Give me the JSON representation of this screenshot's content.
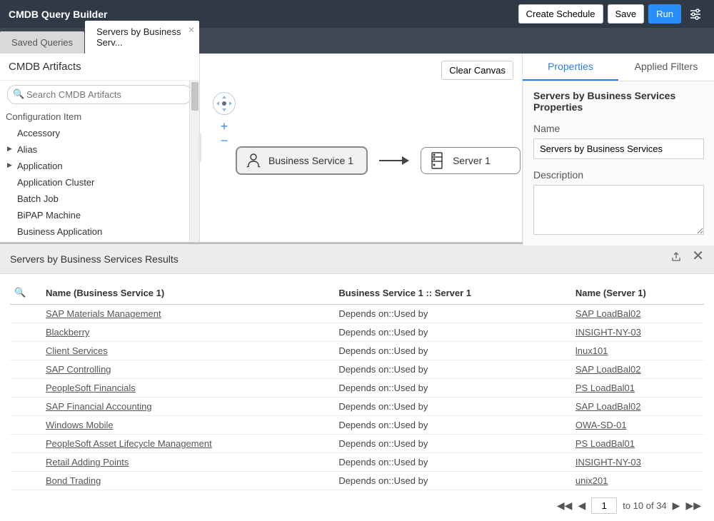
{
  "header": {
    "title": "CMDB Query Builder",
    "create_schedule": "Create Schedule",
    "save": "Save",
    "run": "Run"
  },
  "tabs": {
    "saved_queries": "Saved Queries",
    "active_tab": "Servers by Business Serv..."
  },
  "sidebar": {
    "title": "CMDB Artifacts",
    "search_placeholder": "Search CMDB Artifacts",
    "section": "Configuration Item",
    "items": [
      {
        "label": "Accessory",
        "children": false
      },
      {
        "label": "Alias",
        "children": true
      },
      {
        "label": "Application",
        "children": true
      },
      {
        "label": "Application Cluster",
        "children": false
      },
      {
        "label": "Batch Job",
        "children": false
      },
      {
        "label": "BiPAP Machine",
        "children": false
      },
      {
        "label": "Business Application",
        "children": false
      }
    ]
  },
  "canvas": {
    "clear": "Clear Canvas",
    "node1": "Business Service 1",
    "node2": "Server 1"
  },
  "right_panel": {
    "tab_properties": "Properties",
    "tab_filters": "Applied Filters",
    "heading": "Servers by Business Services Properties",
    "name_label": "Name",
    "name_value": "Servers by Business Services",
    "desc_label": "Description"
  },
  "results": {
    "title": "Servers by Business Services Results",
    "columns": {
      "c1": "Name (Business Service 1)",
      "c2": "Business Service 1 :: Server 1",
      "c3": "Name (Server 1)"
    },
    "rows": [
      {
        "c1": "SAP Materials Management",
        "c2": "Depends on::Used by",
        "c3": "SAP LoadBal02"
      },
      {
        "c1": "Blackberry",
        "c2": "Depends on::Used by",
        "c3": "INSIGHT-NY-03"
      },
      {
        "c1": "Client Services",
        "c2": "Depends on::Used by",
        "c3": "lnux101"
      },
      {
        "c1": "SAP Controlling",
        "c2": "Depends on::Used by",
        "c3": "SAP LoadBal02"
      },
      {
        "c1": "PeopleSoft Financials",
        "c2": "Depends on::Used by",
        "c3": "PS LoadBal01"
      },
      {
        "c1": "SAP Financial Accounting",
        "c2": "Depends on::Used by",
        "c3": "SAP LoadBal02"
      },
      {
        "c1": "Windows Mobile",
        "c2": "Depends on::Used by",
        "c3": "OWA-SD-01"
      },
      {
        "c1": "PeopleSoft Asset Lifecycle Management",
        "c2": "Depends on::Used by",
        "c3": "PS LoadBal01"
      },
      {
        "c1": "Retail Adding Points",
        "c2": "Depends on::Used by",
        "c3": "INSIGHT-NY-03"
      },
      {
        "c1": "Bond Trading",
        "c2": "Depends on::Used by",
        "c3": "unix201"
      }
    ],
    "pagination": {
      "page": "1",
      "range": "to 10 of 34"
    }
  },
  "colors": {
    "header_bg": "#303a46",
    "tabs_bg": "#3e4752",
    "primary": "#278efc",
    "link": "#2a7de1"
  }
}
